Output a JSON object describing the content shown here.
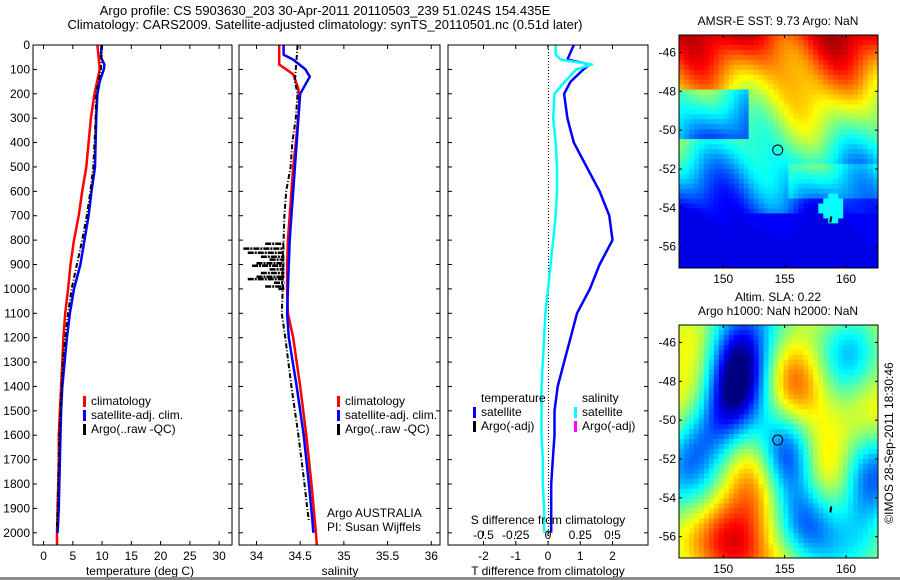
{
  "header": {
    "line1": "Argo profile: CS 5903630_203 30-Apr-2011 20110503_239 51.024S 154.435E",
    "line2": "Climatology: CARS2009. Satellite-adjusted climatology: synTS_20110501.nc (0.51d later)"
  },
  "colors": {
    "climatology": "#ff0000",
    "satellite": "#0000ff",
    "argo": "#000000",
    "salinity_satellite": "#00ffff",
    "salinity_argo": "#ff00ff",
    "temp_diff_satellite": "#0000ff"
  },
  "chart_data": [
    {
      "type": "line",
      "title": "",
      "xlabel": "temperature (deg C)",
      "ylabel": "",
      "xlim": [
        -1.8,
        32.2
      ],
      "ylim": [
        2050,
        0
      ],
      "xticks": [
        0,
        5,
        10,
        15,
        20,
        25,
        30
      ],
      "yticks": [
        0,
        100,
        200,
        300,
        400,
        500,
        600,
        700,
        800,
        900,
        1000,
        1100,
        1200,
        1300,
        1400,
        1500,
        1600,
        1700,
        1800,
        1900,
        2000
      ],
      "legend": {
        "position": "center",
        "entries": [
          "climatology",
          "satellite-adj. clim.",
          "Argo(..raw -QC)"
        ]
      },
      "series": [
        {
          "name": "climatology",
          "color": "#ff0000",
          "depth": [
            0,
            50,
            100,
            200,
            300,
            400,
            500,
            600,
            700,
            800,
            900,
            1000,
            1100,
            1200,
            1300,
            1400,
            1500,
            1600,
            1700,
            1800,
            1900,
            2000,
            2050
          ],
          "values": [
            9.2,
            9.4,
            9.6,
            8.7,
            8.1,
            7.7,
            7.3,
            6.6,
            6.0,
            5.2,
            4.6,
            4.2,
            3.7,
            3.4,
            3.2,
            3.0,
            2.8,
            2.6,
            2.6,
            2.5,
            2.4,
            2.3,
            2.3
          ]
        },
        {
          "name": "satellite-adj. clim.",
          "color": "#0000ff",
          "depth": [
            0,
            50,
            80,
            100,
            150,
            200,
            300,
            400,
            500,
            600,
            700,
            800,
            900,
            1000,
            1100,
            1200,
            1300,
            1400,
            1500,
            1600,
            1700,
            1800,
            1900,
            2000
          ],
          "values": [
            9.9,
            9.8,
            10.4,
            10.3,
            9.6,
            9.2,
            9.0,
            8.9,
            8.8,
            8.2,
            7.7,
            7.0,
            6.3,
            5.2,
            4.5,
            4.0,
            3.6,
            3.2,
            3.0,
            2.9,
            2.8,
            2.7,
            2.6,
            2.4
          ]
        },
        {
          "name": "Argo(..raw -QC)",
          "color": "#000000",
          "dash": true,
          "depth": [
            0,
            50,
            100,
            200,
            300,
            400,
            500,
            600,
            700,
            800,
            900,
            1000,
            1100,
            1200,
            1300,
            1400,
            1500,
            1600,
            1700,
            1800,
            1900,
            2000
          ],
          "values": [
            10.0,
            9.9,
            9.8,
            9.0,
            8.9,
            8.7,
            8.5,
            8.0,
            7.4,
            6.6,
            5.7,
            4.8,
            4.2,
            3.7,
            3.3,
            3.1,
            2.9,
            2.7,
            2.6,
            2.5,
            2.4,
            2.3
          ]
        }
      ]
    },
    {
      "type": "line",
      "title": "",
      "xlabel": "salinity",
      "ylabel": "",
      "xlim": [
        33.8,
        36.1
      ],
      "ylim": [
        2050,
        0
      ],
      "xticks": [
        34,
        34.5,
        35,
        35.5,
        36
      ],
      "xticklabels": [
        "34",
        "34.5",
        "35",
        "35.5",
        "36"
      ],
      "legend": {
        "position": "center-right",
        "entries": [
          "climatology",
          "satellite-adj. clim.",
          "Argo(..raw -QC)"
        ]
      },
      "annotation": [
        "Argo AUSTRALIA",
        "PI: Susan Wijffels"
      ],
      "series": [
        {
          "name": "climatology",
          "color": "#ff0000",
          "depth": [
            0,
            80,
            120,
            180,
            250,
            400,
            500,
            600,
            700,
            800,
            900,
            1000,
            1100,
            1200,
            1400,
            1600,
            1800,
            2000,
            2050
          ],
          "values": [
            34.26,
            34.26,
            34.42,
            34.48,
            34.49,
            34.45,
            34.42,
            34.4,
            34.38,
            34.36,
            34.35,
            34.35,
            34.36,
            34.42,
            34.5,
            34.57,
            34.63,
            34.68,
            34.69
          ]
        },
        {
          "name": "satellite-adj. clim.",
          "color": "#0000ff",
          "depth": [
            0,
            40,
            60,
            100,
            130,
            200,
            300,
            400,
            500,
            600,
            700,
            800,
            900,
            1000,
            1100,
            1200,
            1400,
            1600,
            1800,
            1950,
            2000
          ],
          "values": [
            34.31,
            34.31,
            34.42,
            34.56,
            34.61,
            34.5,
            34.48,
            34.46,
            34.44,
            34.42,
            34.4,
            34.38,
            34.37,
            34.36,
            34.35,
            34.37,
            34.46,
            34.54,
            34.6,
            34.64,
            34.65
          ]
        },
        {
          "name": "Argo(..raw -QC)",
          "color": "#000000",
          "dash": true,
          "depth": [
            0,
            50,
            100,
            150,
            200,
            300,
            400,
            500,
            600,
            700,
            800,
            900,
            1000,
            1100,
            1200,
            1400,
            1600,
            1800,
            1900,
            1950
          ],
          "values": [
            34.47,
            34.46,
            34.45,
            34.44,
            34.47,
            34.45,
            34.41,
            34.39,
            34.34,
            34.32,
            34.31,
            34.3,
            34.3,
            34.29,
            34.33,
            34.4,
            34.48,
            34.55,
            34.58,
            34.6
          ]
        }
      ]
    },
    {
      "type": "line",
      "title": "",
      "xlabel": "T difference from climatology",
      "xlabel2": "S difference from climatology",
      "xlim": [
        -3.1,
        3.1
      ],
      "ylim": [
        2050,
        0
      ],
      "xticks": [
        -2,
        -1,
        0,
        1,
        2
      ],
      "xticks2": [
        -0.5,
        -0.25,
        0,
        0.25,
        0.5
      ],
      "xticklabels2": [
        "-0.5",
        "-0.25",
        "0",
        "0.25",
        "0.5"
      ],
      "legend": {
        "position": "center",
        "groups": [
          {
            "title": "temperature",
            "entries": [
              "satellite",
              "Argo(-adj)"
            ]
          },
          {
            "title": "salinity",
            "entries": [
              "satellite",
              "Argo(-adj)"
            ]
          }
        ]
      },
      "series": [
        {
          "name": "temperature satellite",
          "units": "deg C",
          "color": "#0000ff",
          "depth": [
            0,
            30,
            60,
            80,
            100,
            150,
            200,
            300,
            400,
            500,
            600,
            700,
            800,
            900,
            1000,
            1100,
            1200,
            1300,
            1400,
            1500,
            1600,
            1700,
            1800,
            1900,
            2000
          ],
          "values": [
            0.8,
            0.7,
            0.6,
            1.3,
            1.1,
            0.7,
            0.5,
            0.6,
            0.8,
            1.2,
            1.6,
            1.9,
            2.0,
            1.6,
            1.3,
            0.9,
            0.7,
            0.5,
            0.3,
            0.2,
            0.2,
            0.15,
            0.1,
            0.1,
            0.1
          ]
        },
        {
          "name": "salinity satellite",
          "units": "psu",
          "color": "#00ffff",
          "depth": [
            0,
            40,
            60,
            80,
            100,
            150,
            200,
            300,
            400,
            500,
            600,
            700,
            800,
            900,
            1000,
            1100,
            1200,
            1300,
            1400,
            1500,
            1600,
            1700,
            1800,
            1900,
            2000
          ],
          "values": [
            0.06,
            0.06,
            0.1,
            0.34,
            0.22,
            0.13,
            0.05,
            0.04,
            0.06,
            0.07,
            0.07,
            0.06,
            0.04,
            0.02,
            0.0,
            -0.02,
            -0.03,
            -0.04,
            -0.05,
            -0.05,
            -0.05,
            -0.04,
            -0.04,
            -0.03,
            -0.03
          ]
        }
      ]
    },
    {
      "type": "heatmap",
      "title": "AMSR-E SST: 9.73 Argo: NaN",
      "xlim": [
        146.4,
        162.6
      ],
      "ylim": [
        -57.1,
        -45.1
      ],
      "xticks": [
        150,
        155,
        160
      ],
      "yticks": [
        -46,
        -48,
        -50,
        -52,
        -54,
        -56
      ],
      "marker": {
        "lon": 154.435,
        "lat": -51.024,
        "shape": "circle"
      },
      "track_mark": {
        "lon": 158.8,
        "lat": -54.6
      },
      "colormap": "jet"
    },
    {
      "type": "heatmap",
      "title": "Altim. SLA: 0.22",
      "subtitle": "Argo h1000: NaN h2000: NaN",
      "xlim": [
        146.4,
        162.6
      ],
      "ylim": [
        -57.1,
        -45.1
      ],
      "xticks": [
        150,
        155,
        160
      ],
      "yticks": [
        -46,
        -48,
        -50,
        -52,
        -54,
        -56
      ],
      "marker": {
        "lon": 154.435,
        "lat": -51.024,
        "shape": "circle"
      },
      "track_mark": {
        "lon": 158.8,
        "lat": -54.6
      },
      "colormap": "jet"
    }
  ],
  "footer": {
    "stamp": "©IMOS 28-Sep-2011 18:30:46"
  }
}
